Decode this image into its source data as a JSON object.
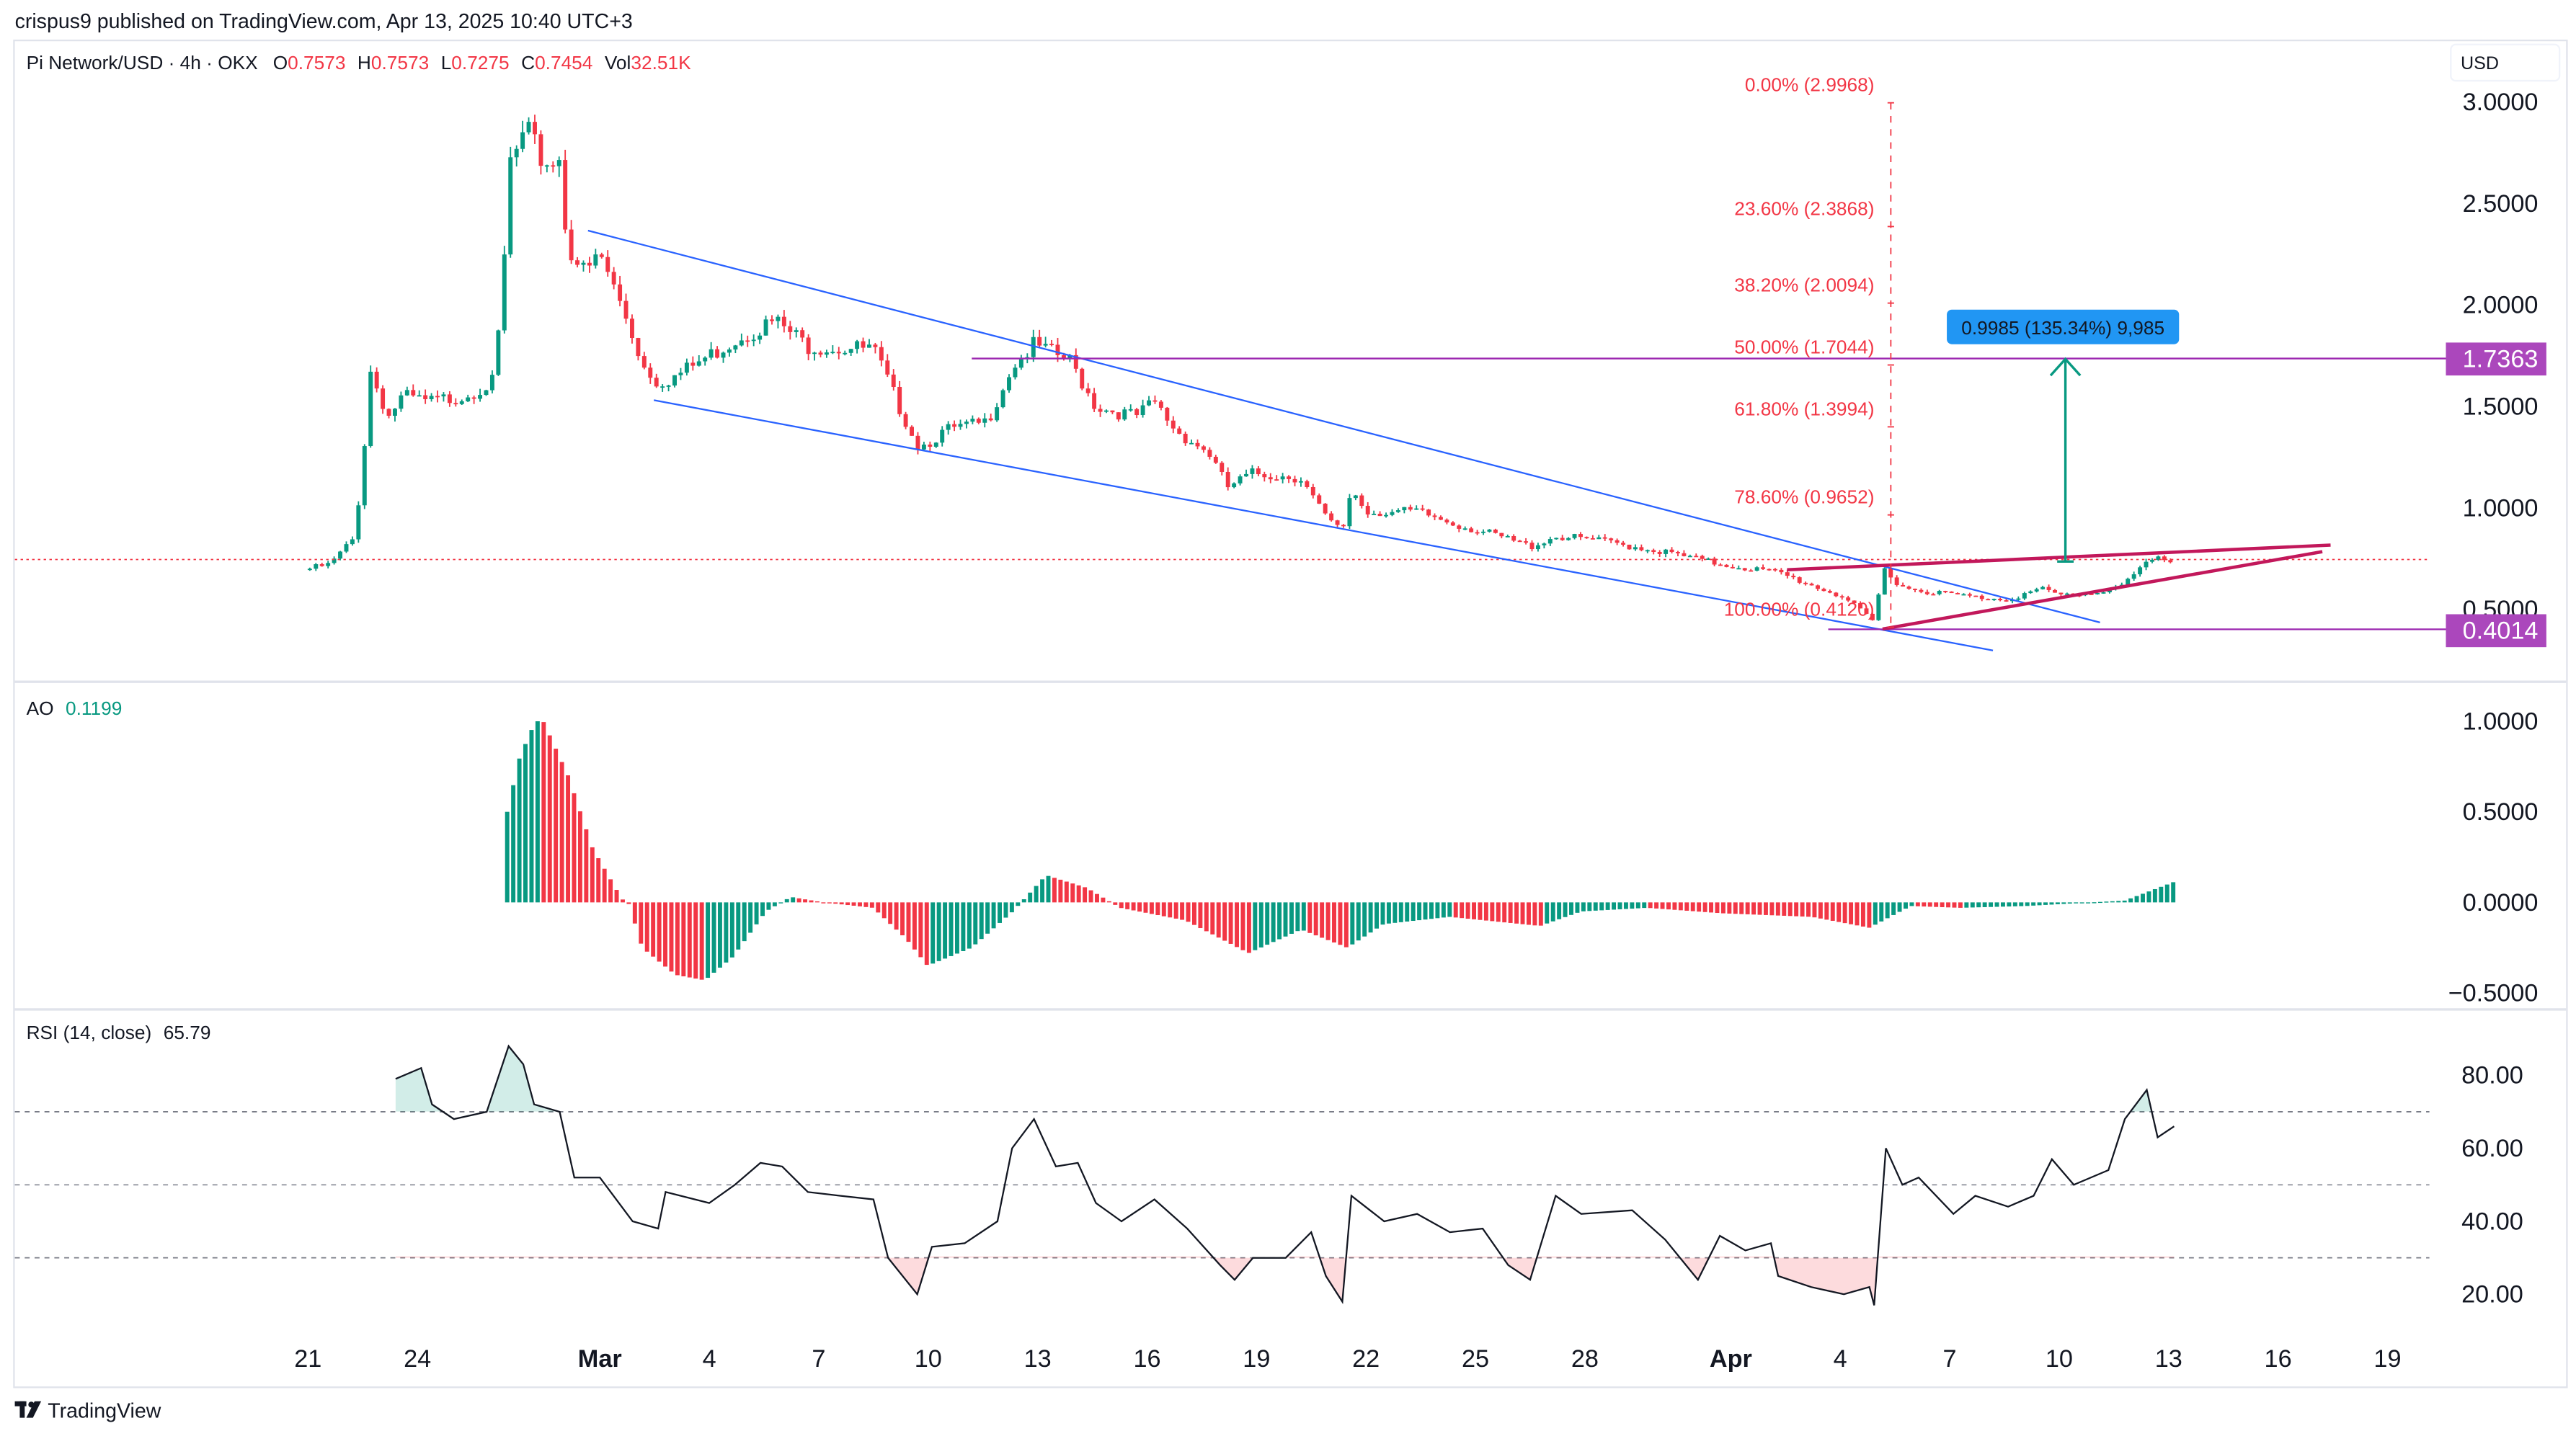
{
  "header": {
    "published": "crispus9 published on TradingView.com, Apr 13, 2025 10:40 UTC+3"
  },
  "legend": {
    "symbol": "Pi Network/USD · 4h · OKX",
    "o_label": "O",
    "o": "0.7573",
    "h_label": "H",
    "h": "0.7573",
    "l_label": "L",
    "l": "0.7275",
    "c_label": "C",
    "c": "0.7454",
    "vol_label": "Vol",
    "vol": "32.51K"
  },
  "currency": "USD",
  "price_axis": {
    "ticks": [
      {
        "label": "3.0000",
        "value": 3.0
      },
      {
        "label": "2.5000",
        "value": 2.5
      },
      {
        "label": "2.0000",
        "value": 2.0
      },
      {
        "label": "1.5000",
        "value": 1.5
      },
      {
        "label": "1.0000",
        "value": 1.0
      },
      {
        "label": "0.5000",
        "value": 0.5
      }
    ]
  },
  "price_labels": {
    "resistance": "1.7363",
    "resistance_value": 1.7363,
    "support": "0.4014",
    "support_value": 0.4014,
    "last_value": 0.7454
  },
  "fib": [
    {
      "label": "0.00% (2.9968)",
      "price": 2.9968
    },
    {
      "label": "23.60% (2.3868)",
      "price": 2.3868
    },
    {
      "label": "38.20% (2.0094)",
      "price": 2.0094
    },
    {
      "label": "50.00% (1.7044)",
      "price": 1.7044
    },
    {
      "label": "61.80% (1.3994)",
      "price": 1.3994
    },
    {
      "label": "78.60% (0.9652)",
      "price": 0.9652
    },
    {
      "label": "100.00% (0.4120)",
      "price": 0.412
    }
  ],
  "measure": {
    "label": "0.9985 (135.34%) 9,985"
  },
  "ao": {
    "title": "AO",
    "value": "0.1199",
    "ticks": [
      {
        "label": "1.0000",
        "value": 1.0
      },
      {
        "label": "0.5000",
        "value": 0.5
      },
      {
        "label": "0.0000",
        "value": 0.0
      },
      {
        "label": "−0.5000",
        "value": -0.5
      }
    ]
  },
  "rsi": {
    "title": "RSI (14, close)",
    "value": "65.79",
    "ticks": [
      {
        "label": "80.00",
        "value": 80
      },
      {
        "label": "60.00",
        "value": 60
      },
      {
        "label": "40.00",
        "value": 40
      },
      {
        "label": "20.00",
        "value": 20
      }
    ],
    "bands": [
      70,
      50,
      30
    ]
  },
  "time_axis": [
    {
      "label": "21",
      "day": 0
    },
    {
      "label": "24",
      "day": 3
    },
    {
      "label": "Mar",
      "day": 8,
      "bold": true
    },
    {
      "label": "4",
      "day": 11
    },
    {
      "label": "7",
      "day": 14
    },
    {
      "label": "10",
      "day": 17
    },
    {
      "label": "13",
      "day": 20
    },
    {
      "label": "16",
      "day": 23
    },
    {
      "label": "19",
      "day": 26
    },
    {
      "label": "22",
      "day": 29
    },
    {
      "label": "25",
      "day": 32
    },
    {
      "label": "28",
      "day": 35
    },
    {
      "label": "Apr",
      "day": 39,
      "bold": true
    },
    {
      "label": "4",
      "day": 42
    },
    {
      "label": "7",
      "day": 45
    },
    {
      "label": "10",
      "day": 48
    },
    {
      "label": "13",
      "day": 51
    },
    {
      "label": "16",
      "day": 54
    },
    {
      "label": "19",
      "day": 57
    }
  ],
  "footer": {
    "brand": "TradingView"
  },
  "colors": {
    "up": "#089981",
    "down": "#f23645",
    "channel": "#2962ff",
    "wedge": "#c2185b",
    "level": "#9c27b0",
    "label_bg": "#ab47bc",
    "measure_bg": "#2196f3",
    "fib": "#f23645"
  },
  "chart_data": [
    {
      "type": "candlestick",
      "title": "Pi Network/USD · 4h · OKX",
      "x_unit": "days since Feb 21, 2025",
      "ylabel": "USD",
      "ylim": [
        0.3,
        3.1
      ],
      "close_path": [
        [
          0.05,
          0.7
        ],
        [
          0.6,
          0.72
        ],
        [
          1.26,
          0.85
        ],
        [
          1.5,
          1.2
        ],
        [
          1.7,
          1.68
        ],
        [
          2.2,
          1.45
        ],
        [
          2.6,
          1.55
        ],
        [
          3.3,
          1.52
        ],
        [
          4.2,
          1.55
        ],
        [
          5.1,
          1.62
        ],
        [
          5.3,
          2.0
        ],
        [
          5.55,
          2.7
        ],
        [
          6.0,
          2.85
        ],
        [
          6.45,
          2.7
        ],
        [
          6.9,
          2.72
        ],
        [
          7.1,
          2.3
        ],
        [
          7.6,
          2.15
        ],
        [
          8.0,
          2.25
        ],
        [
          8.7,
          1.95
        ],
        [
          9.2,
          1.7
        ],
        [
          9.6,
          1.62
        ],
        [
          10.1,
          1.65
        ],
        [
          11.0,
          1.75
        ],
        [
          11.9,
          1.85
        ],
        [
          12.8,
          1.92
        ],
        [
          13.7,
          1.8
        ],
        [
          15.5,
          1.78
        ],
        [
          16.2,
          1.5
        ],
        [
          16.75,
          1.3
        ],
        [
          17.5,
          1.38
        ],
        [
          18.6,
          1.42
        ],
        [
          19.3,
          1.7
        ],
        [
          19.9,
          1.8
        ],
        [
          20.9,
          1.72
        ],
        [
          21.6,
          1.5
        ],
        [
          22.7,
          1.45
        ],
        [
          23.2,
          1.52
        ],
        [
          23.8,
          1.38
        ],
        [
          24.7,
          1.27
        ],
        [
          25.2,
          1.1
        ],
        [
          25.9,
          1.17
        ],
        [
          27.2,
          1.15
        ],
        [
          27.9,
          0.95
        ],
        [
          28.35,
          0.88
        ],
        [
          28.6,
          1.1
        ],
        [
          29.0,
          0.98
        ],
        [
          30.4,
          0.98
        ],
        [
          31.3,
          0.93
        ],
        [
          32.6,
          0.86
        ],
        [
          33.5,
          0.81
        ],
        [
          34.2,
          0.86
        ],
        [
          35.3,
          0.84
        ],
        [
          36.7,
          0.8
        ],
        [
          38.5,
          0.73
        ],
        [
          40.3,
          0.68
        ],
        [
          41.2,
          0.62
        ],
        [
          42.1,
          0.56
        ],
        [
          42.9,
          0.44
        ],
        [
          43.2,
          0.7
        ],
        [
          43.5,
          0.64
        ],
        [
          43.9,
          0.6
        ],
        [
          44.8,
          0.58
        ],
        [
          45.7,
          0.56
        ],
        [
          46.6,
          0.55
        ],
        [
          47.5,
          0.6
        ],
        [
          48.0,
          0.57
        ],
        [
          48.9,
          0.58
        ],
        [
          49.8,
          0.62
        ],
        [
          50.2,
          0.7
        ],
        [
          50.7,
          0.75
        ],
        [
          51.2,
          0.745
        ]
      ]
    },
    {
      "type": "bar",
      "title": "AO",
      "x_unit": "days since Feb 21, 2025",
      "ylim": [
        -0.55,
        1.1
      ],
      "points": [
        [
          5.46,
          0.5
        ],
        [
          5.8,
          0.8
        ],
        [
          6.23,
          1.0
        ],
        [
          6.45,
          1.0
        ],
        [
          7.13,
          0.7
        ],
        [
          7.8,
          0.3
        ],
        [
          8.6,
          0.02
        ],
        [
          8.8,
          -0.01
        ],
        [
          9.16,
          -0.25
        ],
        [
          10.07,
          -0.4
        ],
        [
          10.88,
          -0.43
        ],
        [
          11.65,
          -0.3
        ],
        [
          12.55,
          -0.05
        ],
        [
          13.23,
          0.03
        ],
        [
          14.13,
          0.0
        ],
        [
          15.49,
          -0.03
        ],
        [
          16.39,
          -0.2
        ],
        [
          16.98,
          -0.35
        ],
        [
          18.19,
          -0.25
        ],
        [
          19.32,
          -0.05
        ],
        [
          20.23,
          0.15
        ],
        [
          21.35,
          0.08
        ],
        [
          22.26,
          -0.03
        ],
        [
          24.06,
          -0.1
        ],
        [
          25.78,
          -0.28
        ],
        [
          27.22,
          -0.15
        ],
        [
          28.49,
          -0.25
        ],
        [
          29.48,
          -0.12
        ],
        [
          31.29,
          -0.08
        ],
        [
          33.77,
          -0.13
        ],
        [
          34.9,
          -0.05
        ],
        [
          36.7,
          -0.03
        ],
        [
          38.74,
          -0.06
        ],
        [
          41.22,
          -0.08
        ],
        [
          42.8,
          -0.14
        ],
        [
          43.93,
          -0.02
        ],
        [
          45.28,
          -0.03
        ],
        [
          47.09,
          -0.02
        ],
        [
          48.89,
          0.0
        ],
        [
          49.8,
          0.01
        ],
        [
          51.24,
          0.12
        ]
      ]
    },
    {
      "type": "line",
      "title": "RSI (14, close)",
      "x_unit": "days since Feb 21, 2025",
      "ylim": [
        10,
        90
      ],
      "points": [
        [
          2.4,
          79
        ],
        [
          3.1,
          82
        ],
        [
          3.4,
          72
        ],
        [
          4.0,
          68
        ],
        [
          4.9,
          70
        ],
        [
          5.5,
          88
        ],
        [
          5.9,
          83
        ],
        [
          6.2,
          72
        ],
        [
          6.9,
          70
        ],
        [
          7.3,
          52
        ],
        [
          8.0,
          52
        ],
        [
          8.9,
          40
        ],
        [
          9.6,
          38
        ],
        [
          9.8,
          48
        ],
        [
          11.0,
          45
        ],
        [
          11.7,
          50
        ],
        [
          12.4,
          56
        ],
        [
          13.0,
          55
        ],
        [
          13.7,
          48
        ],
        [
          14.6,
          47
        ],
        [
          15.5,
          46
        ],
        [
          15.9,
          30
        ],
        [
          16.7,
          20
        ],
        [
          17.1,
          33
        ],
        [
          18.0,
          34
        ],
        [
          18.9,
          40
        ],
        [
          19.3,
          60
        ],
        [
          19.9,
          68
        ],
        [
          20.5,
          55
        ],
        [
          21.1,
          56
        ],
        [
          21.6,
          45
        ],
        [
          22.3,
          40
        ],
        [
          23.2,
          46
        ],
        [
          24.1,
          38
        ],
        [
          25.0,
          28
        ],
        [
          25.4,
          24
        ],
        [
          25.9,
          30
        ],
        [
          26.8,
          30
        ],
        [
          27.5,
          37
        ],
        [
          27.9,
          25
        ],
        [
          28.35,
          18
        ],
        [
          28.6,
          47
        ],
        [
          29.5,
          40
        ],
        [
          30.4,
          42
        ],
        [
          31.3,
          37
        ],
        [
          32.2,
          38
        ],
        [
          32.9,
          28
        ],
        [
          33.5,
          24
        ],
        [
          34.2,
          47
        ],
        [
          34.9,
          42
        ],
        [
          36.3,
          43
        ],
        [
          37.2,
          35
        ],
        [
          38.1,
          24
        ],
        [
          38.7,
          36
        ],
        [
          39.4,
          32
        ],
        [
          40.1,
          34
        ],
        [
          40.3,
          25
        ],
        [
          41.2,
          22
        ],
        [
          42.1,
          20
        ],
        [
          42.8,
          22
        ],
        [
          42.93,
          17
        ],
        [
          43.25,
          60
        ],
        [
          43.7,
          50
        ],
        [
          44.15,
          52
        ],
        [
          45.1,
          42
        ],
        [
          45.7,
          47
        ],
        [
          46.6,
          44
        ],
        [
          47.3,
          47
        ],
        [
          47.8,
          57
        ],
        [
          48.4,
          50
        ],
        [
          49.35,
          54
        ],
        [
          49.8,
          68
        ],
        [
          50.4,
          76
        ],
        [
          50.7,
          63
        ],
        [
          51.15,
          66
        ]
      ]
    }
  ]
}
